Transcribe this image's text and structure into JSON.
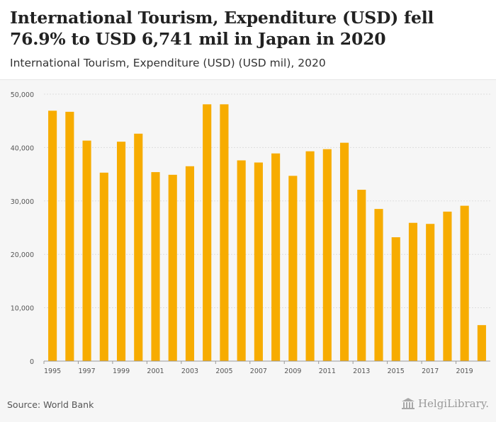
{
  "header": {
    "title": "International Tourism, Expenditure (USD) fell 76.9% to USD 6,741 mil in Japan in 2020",
    "subtitle": "International Tourism, Expenditure (USD) (USD mil), 2020"
  },
  "footer": {
    "source": "Source: World Bank",
    "logo_text": "HelgiLibrary."
  },
  "colors": {
    "bar": "#f7ac00",
    "grid": "#dddddd",
    "axis": "#999999",
    "tick_text": "#555555"
  },
  "chart_data": {
    "type": "bar",
    "title": "International Tourism, Expenditure (USD) fell 76.9% to USD 6,741 mil in Japan in 2020",
    "subtitle": "International Tourism, Expenditure (USD) (USD mil), 2020",
    "xlabel": "",
    "ylabel": "",
    "ylim": [
      0,
      50000
    ],
    "yticks": [
      0,
      10000,
      20000,
      30000,
      40000,
      50000
    ],
    "ytick_labels": [
      "0",
      "10,000",
      "20,000",
      "30,000",
      "40,000",
      "50,000"
    ],
    "grid": true,
    "categories": [
      "1995",
      "1996",
      "1997",
      "1998",
      "1999",
      "2000",
      "2001",
      "2002",
      "2003",
      "2004",
      "2005",
      "2006",
      "2007",
      "2008",
      "2009",
      "2010",
      "2011",
      "2012",
      "2013",
      "2014",
      "2015",
      "2016",
      "2017",
      "2018",
      "2019",
      "2020"
    ],
    "xtick_labels": [
      "1995",
      "1997",
      "1999",
      "2001",
      "2003",
      "2005",
      "2007",
      "2009",
      "2011",
      "2013",
      "2015",
      "2017",
      "2019"
    ],
    "values": [
      46900,
      46700,
      41300,
      35300,
      41100,
      42600,
      35400,
      34900,
      36500,
      48100,
      48100,
      37600,
      37200,
      38900,
      34700,
      39300,
      39700,
      40900,
      32100,
      28500,
      23200,
      25900,
      25700,
      28000,
      29100,
      6741
    ]
  }
}
